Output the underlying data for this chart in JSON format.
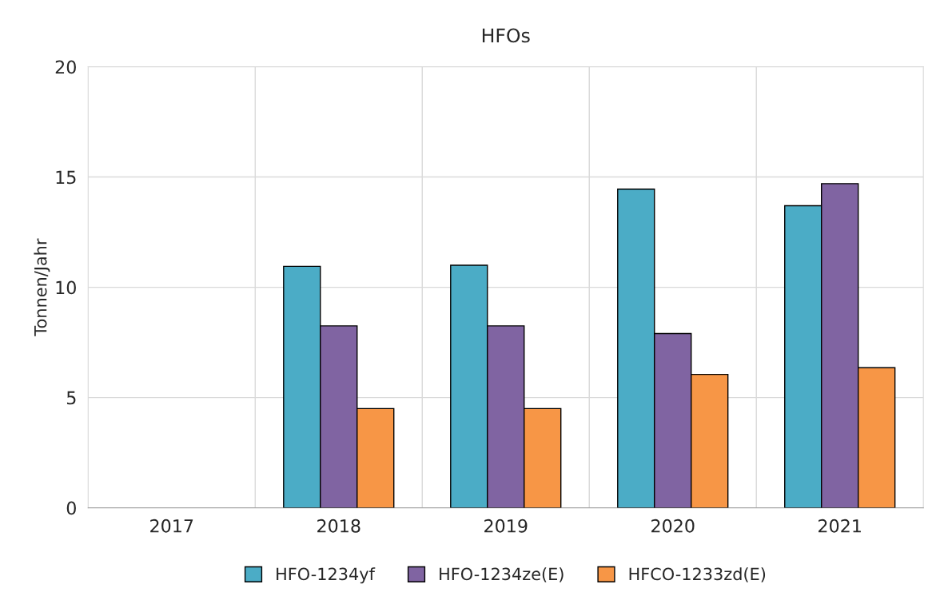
{
  "chart_data": {
    "type": "bar",
    "title": "HFOs",
    "ylabel": "Tonnen/Jahr",
    "categories": [
      "2017",
      "2018",
      "2019",
      "2020",
      "2021"
    ],
    "series": [
      {
        "name": "HFO-1234yf",
        "color": "#4bacc6",
        "values": [
          null,
          10.95,
          11.0,
          14.45,
          13.7
        ]
      },
      {
        "name": "HFO-1234ze(E)",
        "color": "#8064a2",
        "values": [
          null,
          8.25,
          8.25,
          7.9,
          14.7
        ]
      },
      {
        "name": "HFCO-1233zd(E)",
        "color": "#f79646",
        "values": [
          null,
          4.5,
          4.5,
          6.05,
          6.35
        ]
      }
    ],
    "ylim": [
      0,
      20
    ],
    "yticks": [
      0,
      5,
      10,
      15,
      20
    ],
    "grid": true,
    "legend": "bottom"
  }
}
